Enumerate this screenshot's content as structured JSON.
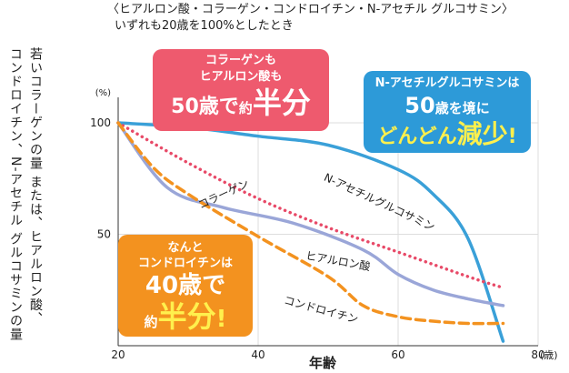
{
  "header": {
    "line1": "〈ヒアルロン酸・コラーゲン・コンドロイチン・N-アセチル グルコサミン〉",
    "line2": "いずれも20歳を100%としたとき"
  },
  "y_axis_title": {
    "line1": "若いコラーゲンの量 または、ヒアルロン酸、",
    "line2": "コンドロイチン、N-アセチル グルコサミンの量"
  },
  "callouts": {
    "collagen_hyaluronic": {
      "line1": "コラーゲンも",
      "line2": "ヒアルロン酸も",
      "line3_a": "50歳で",
      "line3_b": "約",
      "line3_c": "半分"
    },
    "glucosamine": {
      "line1": "N-アセチルグルコサミンは",
      "line2_a": "50",
      "line2_b": "歳を境に",
      "line3_a": "どんどん",
      "line3_b": "減少",
      "line3_c": "!"
    },
    "chondroitin": {
      "line1": "なんと",
      "line2": "コンドロイチンは",
      "line3": "40歳で",
      "line4_a": "約",
      "line4_b": "半分",
      "line4_c": "!"
    }
  },
  "chart_data": {
    "type": "line",
    "xlabel": "年齢",
    "x_unit": "(歳)",
    "ylabel_unit": "(%)",
    "xlim": [
      20,
      80
    ],
    "ylim": [
      0,
      100
    ],
    "x_ticks": [
      "20",
      "40",
      "60",
      "80"
    ],
    "y_ticks": [
      "100",
      "50"
    ],
    "grid": true,
    "series": [
      {
        "name": "N-アセチルグルコサミン",
        "color": "#3aa0d8",
        "style": "solid",
        "x": [
          20,
          30,
          40,
          50,
          60,
          65,
          70,
          75
        ],
        "y": [
          100,
          98,
          94,
          90,
          79,
          68,
          48,
          2
        ]
      },
      {
        "name": "コラーゲン",
        "color": "#e84a68",
        "style": "dotted",
        "x": [
          20,
          30,
          40,
          50,
          60,
          70,
          75
        ],
        "y": [
          100,
          82,
          66,
          53,
          42,
          31,
          26
        ]
      },
      {
        "name": "ヒアルロン酸",
        "color": "#9aa6d8",
        "style": "solid",
        "x": [
          20,
          27,
          35,
          45,
          55,
          60,
          65,
          70,
          75
        ],
        "y": [
          100,
          71,
          62,
          55,
          43,
          32,
          25,
          21,
          18
        ]
      },
      {
        "name": "コンドロイチン",
        "color": "#f3921f",
        "style": "dashed",
        "x": [
          20,
          25,
          30,
          40,
          50,
          55,
          60,
          65,
          70,
          75
        ],
        "y": [
          100,
          80,
          68,
          49,
          31,
          18,
          13,
          11,
          10,
          10
        ]
      }
    ]
  }
}
